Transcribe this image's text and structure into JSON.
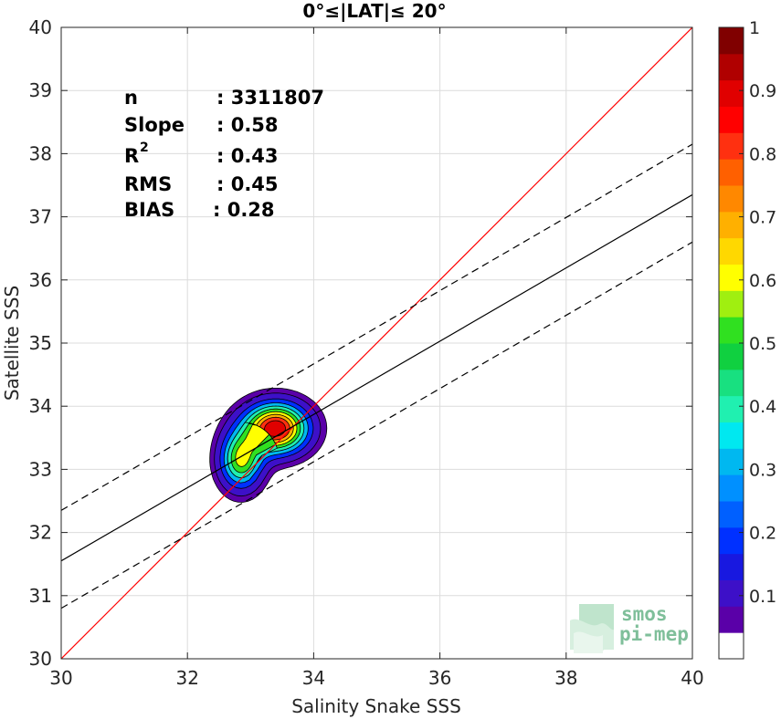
{
  "chart_data": {
    "type": "heatmap",
    "title": "0°≤|LAT|≤ 20°",
    "xlabel": "Salinity Snake SSS",
    "ylabel": "Satellite SSS",
    "xlim": [
      30,
      40
    ],
    "ylim": [
      30,
      40
    ],
    "xticks": [
      "30",
      "32",
      "34",
      "36",
      "38",
      "40"
    ],
    "yticks": [
      "30",
      "31",
      "32",
      "33",
      "34",
      "35",
      "36",
      "37",
      "38",
      "39",
      "40"
    ],
    "grid": true,
    "stats": {
      "n_label": "n",
      "n_value": ": 3311807",
      "slope_label": "Slope",
      "slope_value": ": 0.58",
      "r2_label": "R",
      "r2_sup": "2",
      "r2_value": ": 0.43",
      "rms_label": "RMS",
      "rms_value": ": 0.45",
      "bias_label": "BIAS",
      "bias_value": ": 0.28"
    },
    "lines": {
      "identity": {
        "slope": 1.0,
        "intercept": 0.0,
        "color": "#ff0000"
      },
      "fit": {
        "slope": 0.58,
        "intercept": 14.15,
        "color": "#000000"
      },
      "fit_upper": {
        "slope": 0.58,
        "intercept": 14.95,
        "dashed": true
      },
      "fit_lower": {
        "slope": 0.58,
        "intercept": 13.4,
        "dashed": true
      }
    },
    "density_peaks": [
      {
        "x": 33.4,
        "y": 33.65,
        "amplitude": 1.0,
        "sx": 0.33,
        "sy": 0.26
      },
      {
        "x": 32.85,
        "y": 33.15,
        "amplitude": 0.62,
        "sx": 0.22,
        "sy": 0.3
      }
    ],
    "contour_levels": [
      0.05,
      0.1,
      0.2,
      0.3,
      0.4,
      0.5,
      0.6,
      0.7,
      0.8,
      0.9
    ],
    "colorbar": {
      "range": [
        0,
        1
      ],
      "tick_labels": [
        "0.1",
        "0.2",
        "0.3",
        "0.4",
        "0.5",
        "0.6",
        "0.7",
        "0.8",
        "0.9",
        "1"
      ],
      "colors": [
        "#ffffff",
        "#5a00a8",
        "#3d10c8",
        "#1818e0",
        "#0030ff",
        "#0060ff",
        "#0090ff",
        "#00b8f0",
        "#00e8f0",
        "#20f0b0",
        "#18e080",
        "#10d040",
        "#30e020",
        "#a0ef10",
        "#ffff00",
        "#ffd800",
        "#ffb000",
        "#ff8800",
        "#ff6000",
        "#ff3010",
        "#ff0000",
        "#e00000",
        "#b00000",
        "#800000"
      ]
    }
  },
  "logo": {
    "line1": "smos",
    "line2": "pi-mep"
  }
}
